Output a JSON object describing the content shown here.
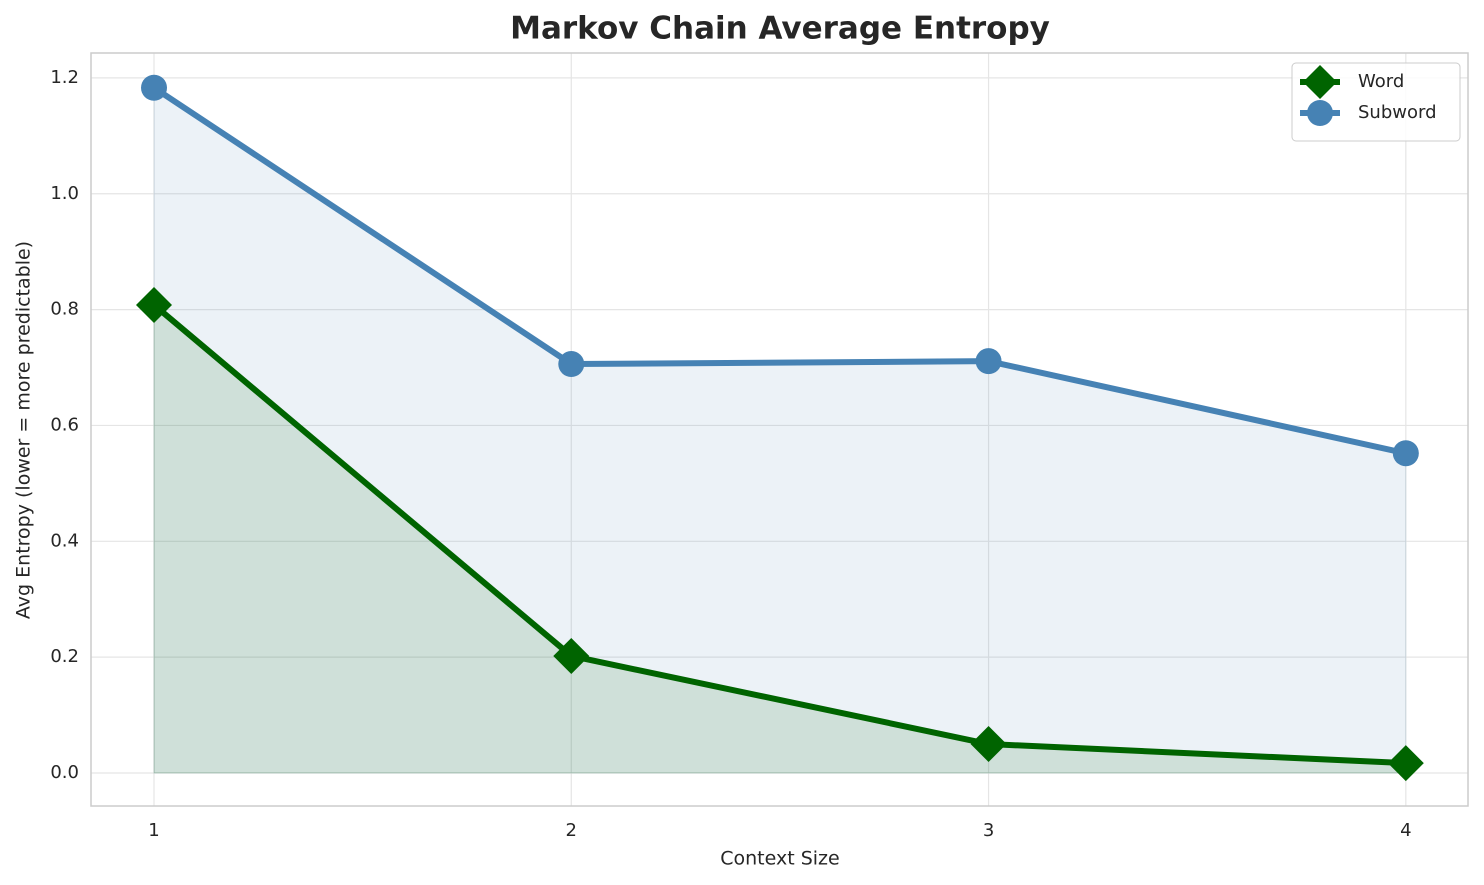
{
  "chart_data": {
    "type": "line",
    "title": "Markov Chain Average Entropy",
    "xlabel": "Context Size",
    "ylabel": "Avg Entropy (lower = more predictable)",
    "x": [
      1,
      2,
      3,
      4
    ],
    "series": [
      {
        "name": "Word",
        "color": "#006400",
        "marker": "diamond",
        "values": [
          0.808,
          0.202,
          0.05,
          0.017
        ]
      },
      {
        "name": "Subword",
        "color": "#4682b4",
        "marker": "circle",
        "values": [
          1.183,
          0.706,
          0.711,
          0.552
        ]
      }
    ],
    "fill_to_zero": true,
    "xlim": [
      0.849,
      4.149
    ],
    "ylim": [
      -0.057,
      1.243
    ],
    "xticks": [
      1,
      2,
      3,
      4
    ],
    "yticks": [
      {
        "value": 0,
        "label": "0.0"
      },
      {
        "value": 0.2,
        "label": "0.2"
      },
      {
        "value": 0.4,
        "label": "0.4"
      },
      {
        "value": 0.6,
        "label": "0.6"
      },
      {
        "value": 0.8,
        "label": "0.8"
      },
      {
        "value": 1,
        "label": "1.0"
      },
      {
        "value": 1.2,
        "label": "1.2"
      }
    ],
    "grid": true,
    "legend": "upper right"
  }
}
